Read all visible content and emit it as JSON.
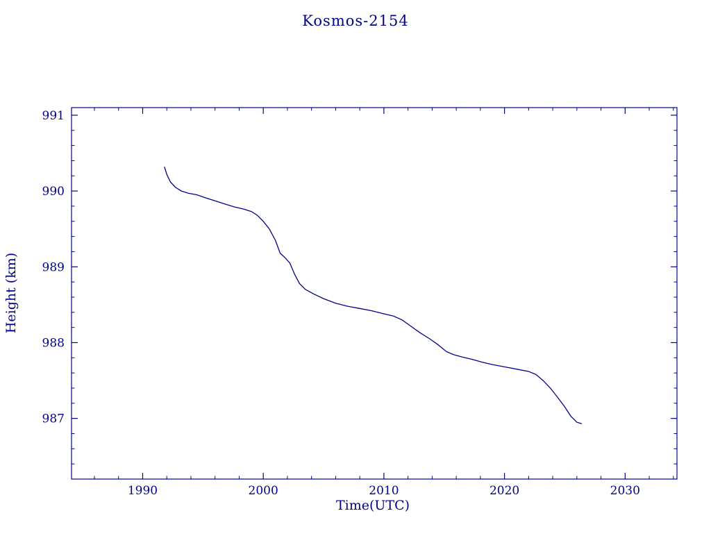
{
  "colors": {
    "line": "#00008b",
    "frame": "#00008b",
    "text": "#00008b",
    "background": "#ffffff"
  },
  "chart_data": {
    "type": "line",
    "title": "Kosmos-2154",
    "xlabel": "Time(UTC)",
    "ylabel": "Height (km)",
    "xlim": [
      1984.1,
      2034.3
    ],
    "ylim": [
      986.2,
      991.1
    ],
    "xticks": [
      1990,
      2000,
      2010,
      2020,
      2030
    ],
    "yticks": [
      987,
      988,
      989,
      990,
      991
    ],
    "x_minor_step": 2,
    "y_minor_step": 0.2,
    "grid": false,
    "legend": "none",
    "series": [
      {
        "name": "height",
        "x": [
          1991.8,
          1992.0,
          1992.3,
          1992.7,
          1993.2,
          1993.8,
          1994.5,
          1995.2,
          1996.0,
          1996.8,
          1997.6,
          1998.4,
          1999.0,
          1999.5,
          2000.0,
          2000.5,
          2001.0,
          2001.4,
          2001.8,
          2002.2,
          2002.6,
          2003.0,
          2003.5,
          2004.2,
          2005.0,
          2006.0,
          2007.0,
          2008.0,
          2009.0,
          2010.0,
          2010.8,
          2011.5,
          2012.2,
          2013.0,
          2013.8,
          2014.5,
          2015.2,
          2015.8,
          2016.5,
          2017.3,
          2018.2,
          2019.0,
          2020.0,
          2021.0,
          2022.0,
          2022.6,
          2023.2,
          2023.8,
          2024.4,
          2025.0,
          2025.5,
          2026.0,
          2026.4
        ],
        "y": [
          990.32,
          990.22,
          990.12,
          990.05,
          990.0,
          989.97,
          989.95,
          989.91,
          989.87,
          989.83,
          989.79,
          989.76,
          989.73,
          989.68,
          989.6,
          989.5,
          989.35,
          989.18,
          989.12,
          989.05,
          988.9,
          988.78,
          988.7,
          988.64,
          988.58,
          988.52,
          988.48,
          988.45,
          988.42,
          988.38,
          988.35,
          988.3,
          988.22,
          988.13,
          988.05,
          987.97,
          987.88,
          987.84,
          987.81,
          987.78,
          987.74,
          987.71,
          987.68,
          987.65,
          987.62,
          987.58,
          987.5,
          987.4,
          987.28,
          987.15,
          987.03,
          986.95,
          986.93
        ]
      }
    ]
  }
}
